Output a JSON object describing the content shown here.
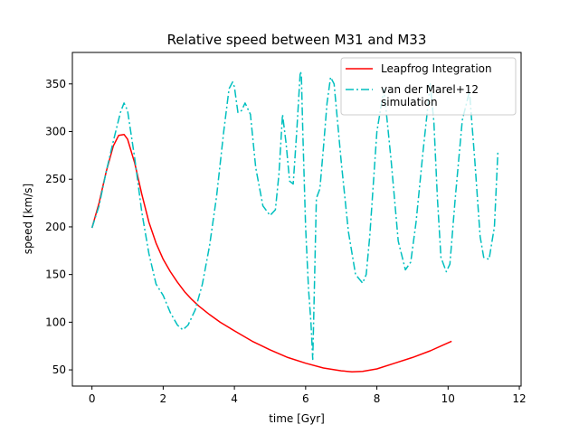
{
  "chart_data": {
    "type": "line",
    "title": "Relative speed between M31 and M33",
    "xlabel": "time [Gyr]",
    "ylabel": "speed [km/s]",
    "xlim": [
      -0.55,
      12.05
    ],
    "ylim": [
      33,
      383
    ],
    "xticks": [
      0,
      2,
      4,
      6,
      8,
      10,
      12
    ],
    "yticks": [
      50,
      100,
      150,
      200,
      250,
      300,
      350
    ],
    "grid": false,
    "legend_position": "top-right",
    "series": [
      {
        "name": "Leapfrog Integration",
        "color": "#ff0000",
        "style": "solid",
        "x": [
          0.0,
          0.2,
          0.4,
          0.6,
          0.75,
          0.9,
          1.0,
          1.2,
          1.4,
          1.6,
          1.8,
          2.0,
          2.2,
          2.4,
          2.6,
          2.8,
          3.0,
          3.3,
          3.6,
          4.0,
          4.5,
          5.0,
          5.5,
          6.0,
          6.5,
          7.0,
          7.3,
          7.6,
          8.0,
          8.5,
          9.0,
          9.5,
          10.1
        ],
        "y": [
          199,
          225,
          258,
          285,
          296,
          297,
          292,
          267,
          234,
          205,
          183,
          166,
          153,
          142,
          132,
          124,
          117,
          108,
          100,
          91,
          80,
          71,
          63,
          57,
          52,
          49,
          48,
          48.5,
          51,
          57,
          63,
          70,
          80
        ]
      },
      {
        "name": "van der Marel+12\nsimulation",
        "color": "#00bfbf",
        "style": "dashdot",
        "x": [
          0.0,
          0.2,
          0.4,
          0.6,
          0.8,
          0.9,
          1.0,
          1.2,
          1.4,
          1.6,
          1.8,
          2.0,
          2.2,
          2.4,
          2.55,
          2.7,
          2.9,
          3.1,
          3.3,
          3.5,
          3.7,
          3.85,
          3.95,
          4.0,
          4.05,
          4.1,
          4.2,
          4.3,
          4.45,
          4.6,
          4.8,
          5.0,
          5.15,
          5.25,
          5.35,
          5.45,
          5.55,
          5.65,
          5.75,
          5.85,
          5.88,
          5.92,
          6.0,
          6.08,
          6.15,
          6.2,
          6.23,
          6.3,
          6.4,
          6.5,
          6.6,
          6.7,
          6.8,
          7.0,
          7.2,
          7.4,
          7.6,
          7.7,
          7.8,
          8.0,
          8.2,
          8.4,
          8.6,
          8.8,
          8.95,
          9.1,
          9.3,
          9.5,
          9.6,
          9.7,
          9.8,
          9.95,
          10.05,
          10.2,
          10.4,
          10.6,
          10.75,
          10.9,
          11.0,
          11.15,
          11.3,
          11.4
        ],
        "y": [
          199,
          222,
          258,
          290,
          320,
          330,
          322,
          272,
          215,
          172,
          140,
          128,
          110,
          97,
          92,
          97,
          113,
          140,
          180,
          232,
          300,
          345,
          352,
          347,
          333,
          320,
          322,
          330,
          318,
          262,
          222,
          212,
          218,
          255,
          318,
          288,
          248,
          245,
          300,
          363,
          360,
          300,
          200,
          135,
          100,
          61,
          110,
          230,
          240,
          283,
          330,
          357,
          350,
          268,
          195,
          150,
          141,
          150,
          190,
          300,
          345,
          270,
          185,
          155,
          163,
          205,
          280,
          350,
          310,
          230,
          168,
          153,
          161,
          230,
          312,
          342,
          270,
          190,
          168,
          166,
          200,
          280
        ]
      }
    ]
  }
}
